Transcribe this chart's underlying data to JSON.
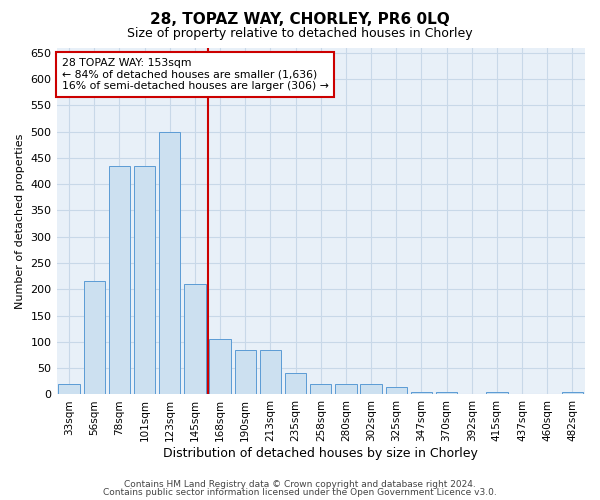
{
  "title": "28, TOPAZ WAY, CHORLEY, PR6 0LQ",
  "subtitle": "Size of property relative to detached houses in Chorley",
  "xlabel": "Distribution of detached houses by size in Chorley",
  "ylabel": "Number of detached properties",
  "categories": [
    "33sqm",
    "56sqm",
    "78sqm",
    "101sqm",
    "123sqm",
    "145sqm",
    "168sqm",
    "190sqm",
    "213sqm",
    "235sqm",
    "258sqm",
    "280sqm",
    "302sqm",
    "325sqm",
    "347sqm",
    "370sqm",
    "392sqm",
    "415sqm",
    "437sqm",
    "460sqm",
    "482sqm"
  ],
  "values": [
    20,
    215,
    435,
    435,
    500,
    210,
    105,
    85,
    85,
    40,
    20,
    20,
    20,
    15,
    5,
    5,
    0,
    5,
    0,
    0,
    5
  ],
  "bar_color": "#cce0f0",
  "bar_edge_color": "#5b9bd5",
  "property_line_x": 5.5,
  "property_line_color": "#cc0000",
  "annotation_line1": "28 TOPAZ WAY: 153sqm",
  "annotation_line2": "← 84% of detached houses are smaller (1,636)",
  "annotation_line3": "16% of semi-detached houses are larger (306) →",
  "annotation_box_color": "#ffffff",
  "annotation_box_edge": "#cc0000",
  "ylim": [
    0,
    660
  ],
  "yticks": [
    0,
    50,
    100,
    150,
    200,
    250,
    300,
    350,
    400,
    450,
    500,
    550,
    600,
    650
  ],
  "grid_color": "#c8d8e8",
  "background_color": "#e8f0f8",
  "footer_line1": "Contains HM Land Registry data © Crown copyright and database right 2024.",
  "footer_line2": "Contains public sector information licensed under the Open Government Licence v3.0."
}
